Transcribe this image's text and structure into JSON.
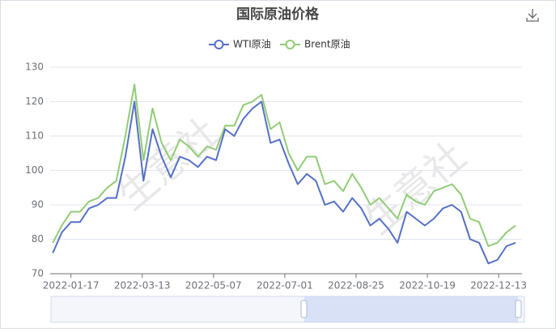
{
  "chart_data": {
    "type": "line",
    "title": "国际原油价格",
    "watermark": "生意社",
    "x": [
      "2022-01-03",
      "2022-01-10",
      "2022-01-17",
      "2022-01-24",
      "2022-01-31",
      "2022-02-07",
      "2022-02-14",
      "2022-02-21",
      "2022-02-28",
      "2022-03-07",
      "2022-03-14",
      "2022-03-21",
      "2022-03-28",
      "2022-04-04",
      "2022-04-11",
      "2022-04-18",
      "2022-04-25",
      "2022-05-02",
      "2022-05-09",
      "2022-05-16",
      "2022-05-23",
      "2022-05-30",
      "2022-06-06",
      "2022-06-13",
      "2022-06-20",
      "2022-06-27",
      "2022-07-04",
      "2022-07-11",
      "2022-07-18",
      "2022-07-25",
      "2022-08-01",
      "2022-08-08",
      "2022-08-15",
      "2022-08-22",
      "2022-08-29",
      "2022-09-05",
      "2022-09-12",
      "2022-09-19",
      "2022-09-26",
      "2022-10-03",
      "2022-10-10",
      "2022-10-17",
      "2022-10-24",
      "2022-10-31",
      "2022-11-07",
      "2022-11-14",
      "2022-11-21",
      "2022-11-28",
      "2022-12-05",
      "2022-12-12",
      "2022-12-19",
      "2022-12-26"
    ],
    "series": [
      {
        "name": "WTI原油",
        "color": "#5470c6",
        "values": [
          76,
          82,
          85,
          85,
          89,
          90,
          92,
          92,
          104,
          120,
          97,
          112,
          104,
          98,
          104,
          103,
          101,
          104,
          103,
          112,
          110,
          115,
          118,
          120,
          108,
          109,
          102,
          96,
          99,
          97,
          90,
          91,
          88,
          92,
          89,
          84,
          86,
          83,
          79,
          88,
          86,
          84,
          86,
          89,
          90,
          88,
          80,
          79,
          73,
          74,
          78,
          79
        ]
      },
      {
        "name": "Brent原油",
        "color": "#91cc75",
        "values": [
          79,
          84,
          88,
          88,
          91,
          92,
          95,
          97,
          110,
          125,
          103,
          118,
          108,
          103,
          109,
          107,
          104,
          107,
          106,
          113,
          113,
          119,
          120,
          122,
          112,
          114,
          105,
          100,
          104,
          104,
          96,
          97,
          94,
          99,
          95,
          90,
          92,
          89,
          86,
          93,
          91,
          90,
          94,
          95,
          96,
          93,
          86,
          85,
          78,
          79,
          82,
          84
        ]
      }
    ],
    "xlim": [
      "2022-01-01",
      "2022-12-31"
    ],
    "xticks": [
      "2022-01-17",
      "2022-03-13",
      "2022-05-07",
      "2022-07-01",
      "2022-08-25",
      "2022-10-19",
      "2022-12-13"
    ],
    "ylim": [
      70,
      130
    ],
    "yticks": [
      70,
      80,
      90,
      100,
      110,
      120,
      130
    ],
    "grid": true
  }
}
